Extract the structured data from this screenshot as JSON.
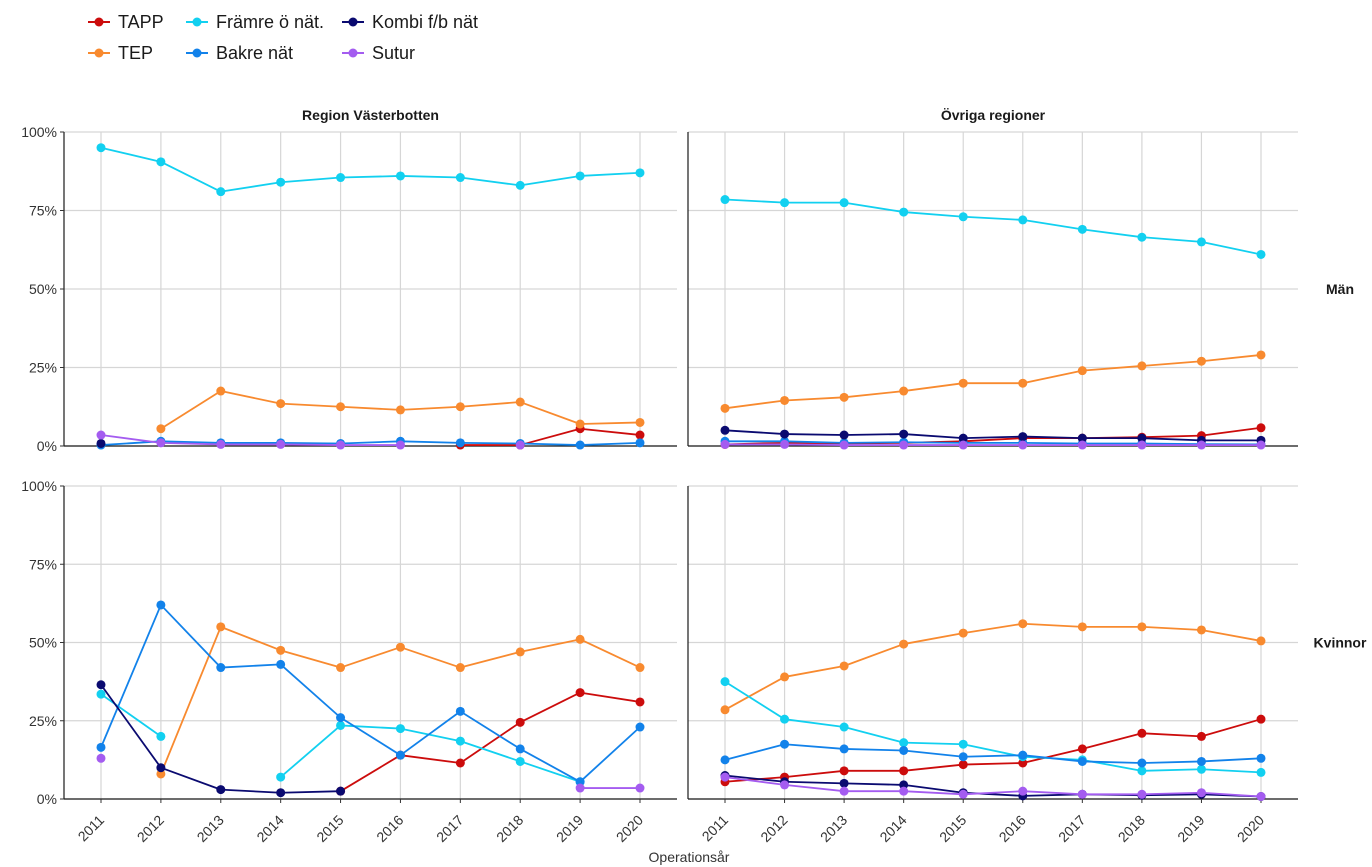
{
  "chart_data": {
    "type": "line",
    "xlabel": "Operationsår",
    "ylabel": "",
    "ylim": [
      0,
      100
    ],
    "yticks": [
      "0%",
      "25%",
      "50%",
      "75%",
      "100%"
    ],
    "ytick_values": [
      0,
      25,
      50,
      75,
      100
    ],
    "x": [
      2011,
      2012,
      2013,
      2014,
      2015,
      2016,
      2017,
      2018,
      2019,
      2020
    ],
    "grid": true,
    "legend_position": "top-left",
    "series_meta": [
      {
        "name": "TAPP",
        "color": "#cc0c0c"
      },
      {
        "name": "TEP",
        "color": "#f88a2f"
      },
      {
        "name": "Främre ö nät.",
        "color": "#12d0f0"
      },
      {
        "name": "Bakre nät",
        "color": "#1282ea"
      },
      {
        "name": "Kombi f/b nät",
        "color": "#0a0a70"
      },
      {
        "name": "Sutur",
        "color": "#a45cf0"
      }
    ],
    "columns": [
      "Region Västerbotten",
      "Övriga regioner"
    ],
    "rows": [
      "Män",
      "Kvinnor"
    ],
    "panels": [
      {
        "column": "Region Västerbotten",
        "row": "Män",
        "series": [
          {
            "name": "TAPP",
            "values": [
              null,
              null,
              null,
              null,
              null,
              null,
              0.3,
              0.3,
              5.5,
              3.5
            ]
          },
          {
            "name": "TEP",
            "values": [
              null,
              5.5,
              17.5,
              13.5,
              12.5,
              11.5,
              12.5,
              14,
              7,
              7.5
            ]
          },
          {
            "name": "Främre ö nät.",
            "values": [
              95,
              90.5,
              81,
              84,
              85.5,
              86,
              85.5,
              83,
              86,
              87
            ]
          },
          {
            "name": "Bakre nät",
            "values": [
              0.3,
              1.5,
              1,
              1,
              0.8,
              1.5,
              1,
              0.8,
              0.3,
              1
            ]
          },
          {
            "name": "Kombi f/b nät",
            "values": [
              0.8,
              null,
              null,
              null,
              null,
              null,
              null,
              null,
              null,
              null
            ]
          },
          {
            "name": "Sutur",
            "values": [
              3.5,
              1,
              0.5,
              0.5,
              0.3,
              0.3,
              null,
              0.3,
              null,
              null
            ]
          }
        ]
      },
      {
        "column": "Övriga regioner",
        "row": "Män",
        "series": [
          {
            "name": "TAPP",
            "values": [
              0.5,
              1,
              0.8,
              1,
              1.5,
              2.5,
              2.5,
              2.8,
              3.3,
              5.8
            ]
          },
          {
            "name": "TEP",
            "values": [
              12,
              14.5,
              15.5,
              17.5,
              20,
              20,
              24,
              25.5,
              27,
              29
            ]
          },
          {
            "name": "Främre ö nät.",
            "values": [
              78.5,
              77.5,
              77.5,
              74.5,
              73,
              72,
              69,
              66.5,
              65,
              61
            ]
          },
          {
            "name": "Bakre nät",
            "values": [
              1.5,
              1.5,
              1,
              1.2,
              1,
              1,
              0.8,
              0.8,
              0.6,
              0.5
            ]
          },
          {
            "name": "Kombi f/b nät",
            "values": [
              5,
              3.8,
              3.5,
              3.8,
              2.5,
              3,
              2.5,
              2.5,
              1.8,
              1.8
            ]
          },
          {
            "name": "Sutur",
            "values": [
              0.5,
              0.5,
              0.3,
              0.3,
              0.3,
              0.3,
              0.3,
              0.3,
              0.3,
              0.3
            ]
          }
        ]
      },
      {
        "column": "Region Västerbotten",
        "row": "Kvinnor",
        "series": [
          {
            "name": "TAPP",
            "values": [
              null,
              null,
              null,
              null,
              2.5,
              14,
              11.5,
              24.5,
              34,
              31
            ]
          },
          {
            "name": "TEP",
            "values": [
              null,
              8,
              55,
              47.5,
              42,
              48.5,
              42,
              47,
              51,
              42
            ]
          },
          {
            "name": "Främre ö nät.",
            "values": [
              33.5,
              20,
              null,
              7,
              23.5,
              22.5,
              18.5,
              12,
              5.5,
              null
            ]
          },
          {
            "name": "Bakre nät",
            "values": [
              16.5,
              62,
              42,
              43,
              26,
              14,
              28,
              16,
              5.5,
              23
            ]
          },
          {
            "name": "Kombi f/b nät",
            "values": [
              36.5,
              10,
              3,
              2,
              2.5,
              null,
              null,
              null,
              null,
              null
            ]
          },
          {
            "name": "Sutur",
            "values": [
              13,
              null,
              null,
              null,
              null,
              null,
              null,
              null,
              3.5,
              3.5
            ]
          }
        ]
      },
      {
        "column": "Övriga regioner",
        "row": "Kvinnor",
        "series": [
          {
            "name": "TAPP",
            "values": [
              5.5,
              7,
              9,
              9,
              11,
              11.5,
              16,
              21,
              20,
              25.5
            ]
          },
          {
            "name": "TEP",
            "values": [
              28.5,
              39,
              42.5,
              49.5,
              53,
              56,
              55,
              55,
              54,
              50.5
            ]
          },
          {
            "name": "Främre ö nät.",
            "values": [
              37.5,
              25.5,
              23,
              18,
              17.5,
              13.5,
              12.5,
              9,
              9.5,
              8.5
            ]
          },
          {
            "name": "Bakre nät",
            "values": [
              12.5,
              17.5,
              16,
              15.5,
              13.5,
              14,
              12,
              11.5,
              12,
              13
            ]
          },
          {
            "name": "Kombi f/b nät",
            "values": [
              7.5,
              5.5,
              5,
              4.5,
              2,
              1,
              1.5,
              1.2,
              1.5,
              0.8
            ]
          },
          {
            "name": "Sutur",
            "values": [
              7,
              4.5,
              2.5,
              2.5,
              1.5,
              2.5,
              1.5,
              1.5,
              2,
              0.8
            ]
          }
        ]
      }
    ]
  }
}
